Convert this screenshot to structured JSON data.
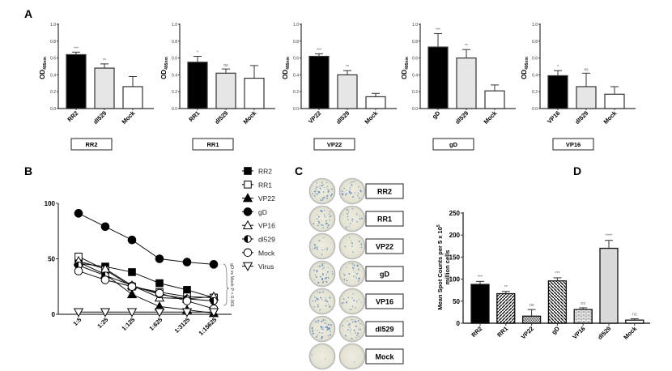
{
  "panel_labels": {
    "a": "A",
    "b": "B",
    "c": "C",
    "d": "D"
  },
  "chart_data": [
    {
      "panel": "A",
      "type": "bar",
      "group": "RR2",
      "ylabel": "OD",
      "ylabel_sub": "495nm",
      "ylim": [
        0,
        1.0
      ],
      "yticks": [
        "0.0",
        "0.2",
        "0.4",
        "0.6",
        "0.8",
        "1.0"
      ],
      "categories": [
        "RR2",
        "dl529",
        "Mock"
      ],
      "values": [
        0.64,
        0.48,
        0.26
      ],
      "error_upper": [
        0.67,
        0.53,
        0.38
      ],
      "significance": [
        "***",
        "**",
        ""
      ]
    },
    {
      "panel": "A",
      "type": "bar",
      "group": "RR1",
      "ylabel": "OD",
      "ylabel_sub": "495nm",
      "ylim": [
        0,
        1.0
      ],
      "yticks": [
        "0.0",
        "0.2",
        "0.4",
        "0.6",
        "0.8",
        "1.0"
      ],
      "categories": [
        "RR1",
        "dl529",
        "Mock"
      ],
      "values": [
        0.55,
        0.42,
        0.36
      ],
      "error_upper": [
        0.62,
        0.47,
        0.51
      ],
      "significance": [
        "*",
        "ns",
        ""
      ]
    },
    {
      "panel": "A",
      "type": "bar",
      "group": "VP22",
      "ylabel": "OD",
      "ylabel_sub": "495nm",
      "ylim": [
        0,
        1.0
      ],
      "yticks": [
        "0.0",
        "0.2",
        "0.4",
        "0.6",
        "0.8",
        "1.0"
      ],
      "categories": [
        "VP22",
        "dl529",
        "Mock"
      ],
      "values": [
        0.62,
        0.4,
        0.14
      ],
      "error_upper": [
        0.65,
        0.45,
        0.18
      ],
      "significance": [
        "***",
        "**",
        ""
      ]
    },
    {
      "panel": "A",
      "type": "bar",
      "group": "gD",
      "ylabel": "OD",
      "ylabel_sub": "495nm",
      "ylim": [
        0,
        1.0
      ],
      "yticks": [
        "0.0",
        "0.2",
        "0.4",
        "0.6",
        "0.8",
        "1.0"
      ],
      "categories": [
        "gD",
        "dl529",
        "Mock"
      ],
      "values": [
        0.73,
        0.6,
        0.21
      ],
      "error_upper": [
        0.89,
        0.7,
        0.28
      ],
      "significance": [
        "***",
        "**",
        ""
      ]
    },
    {
      "panel": "A",
      "type": "bar",
      "group": "VP16",
      "ylabel": "OD",
      "ylabel_sub": "495nm",
      "ylim": [
        0,
        1.0
      ],
      "yticks": [
        "0.0",
        "0.2",
        "0.4",
        "0.6",
        "0.8",
        "1.0"
      ],
      "categories": [
        "VP16",
        "dl529",
        "Mock"
      ],
      "values": [
        0.39,
        0.26,
        0.17
      ],
      "error_upper": [
        0.45,
        0.42,
        0.26
      ],
      "significance": [
        "*",
        "ns",
        ""
      ]
    },
    {
      "panel": "B",
      "type": "line",
      "ylim": [
        0,
        100
      ],
      "yticks": [
        "0",
        "50",
        "100"
      ],
      "x": [
        "1:5",
        "1:25",
        "1:125",
        "1:625",
        "1:3125",
        "1:15625"
      ],
      "annotation": "gD vs Mock P < 0.001",
      "legend_position": "right",
      "series": [
        {
          "name": "RR2",
          "marker": "square-filled",
          "values": [
            46,
            43,
            38,
            28,
            22,
            15
          ]
        },
        {
          "name": "RR1",
          "marker": "square-open",
          "values": [
            52,
            40,
            25,
            20,
            16,
            15
          ]
        },
        {
          "name": "VP22",
          "marker": "triangle-filled",
          "values": [
            47,
            36,
            18,
            7,
            4,
            1
          ]
        },
        {
          "name": "gD",
          "marker": "circle-filled",
          "values": [
            91,
            79,
            67,
            50,
            47,
            45
          ]
        },
        {
          "name": "VP16",
          "marker": "triangle-open",
          "values": [
            48,
            41,
            26,
            15,
            14,
            16
          ]
        },
        {
          "name": "dl529",
          "marker": "circle-half",
          "values": [
            44,
            35,
            26,
            18,
            14,
            12
          ]
        },
        {
          "name": "Mock",
          "marker": "circle-open",
          "values": [
            39,
            31,
            25,
            19,
            12,
            5
          ]
        },
        {
          "name": "Virus",
          "marker": "triangle-down-open",
          "values": [
            2,
            2,
            2,
            2,
            2,
            2
          ]
        }
      ]
    },
    {
      "panel": "D",
      "type": "bar",
      "ylabel": "Mean Spot Counts per 5 x 10",
      "ylabel_sup": "5",
      "ylabel_line2": "million cells",
      "ylim": [
        0,
        250
      ],
      "yticks": [
        "0",
        "50",
        "100",
        "150",
        "200",
        "250"
      ],
      "categories": [
        "RR2",
        "RR1",
        "VP22",
        "gD",
        "VP16",
        "dl529",
        "Mock"
      ],
      "values": [
        88,
        67,
        16,
        96,
        31,
        170,
        7
      ],
      "error_upper": [
        95,
        72,
        31,
        103,
        35,
        188,
        10
      ],
      "significance": [
        "***",
        "**",
        "ns",
        "***",
        "ns",
        "****",
        "ns"
      ]
    }
  ],
  "panel_c": {
    "wells": [
      {
        "label": "RR2",
        "spots": 40
      },
      {
        "label": "RR1",
        "spots": 30
      },
      {
        "label": "VP22",
        "spots": 14
      },
      {
        "label": "gD",
        "spots": 38
      },
      {
        "label": "VP16",
        "spots": 24
      },
      {
        "label": "dl529",
        "spots": 45
      },
      {
        "label": "Mock",
        "spots": 2
      }
    ]
  },
  "colors": {
    "black": "#000000",
    "light_gray": "#e6e6e6",
    "axis": "#333333",
    "well_bg": "#e9e8d8",
    "spot": "#4a78b8"
  }
}
